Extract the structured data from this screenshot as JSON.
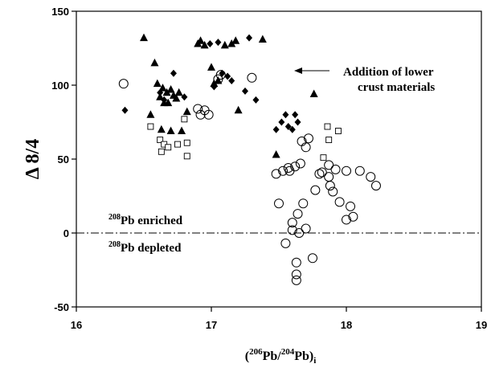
{
  "chart_data": {
    "type": "scatter",
    "xlabel": {
      "pre": "(",
      "sup": "206",
      "mid": "Pb/",
      "sup2": "204",
      "mid2": "Pb)",
      "sub": "i"
    },
    "ylabel": "Δ 8/4",
    "xlim": [
      16,
      19
    ],
    "ylim": [
      -50,
      150
    ],
    "xticks": [
      "16",
      "17",
      "18",
      "19"
    ],
    "yticks": [
      "-50",
      "0",
      "50",
      "100",
      "150"
    ],
    "grid": false,
    "reference_line": {
      "y": 0,
      "style": "dash-dot"
    },
    "annotations": {
      "arrow_line1": "Addition of lower",
      "arrow_line2": "crust materials",
      "enriched_sup": "208",
      "enriched_text": "Pb enriched",
      "depleted_sup": "208",
      "depleted_text": "Pb depleted"
    },
    "series": [
      {
        "marker": "triangle-filled",
        "points": [
          [
            16.5,
            132
          ],
          [
            16.55,
            80
          ],
          [
            16.58,
            115
          ],
          [
            16.6,
            101
          ],
          [
            16.62,
            92
          ],
          [
            16.63,
            70
          ],
          [
            16.64,
            98
          ],
          [
            16.65,
            88
          ],
          [
            16.67,
            95
          ],
          [
            16.68,
            88
          ],
          [
            16.7,
            97
          ],
          [
            16.7,
            69
          ],
          [
            16.72,
            93
          ],
          [
            16.74,
            91
          ],
          [
            16.76,
            95
          ],
          [
            16.78,
            69
          ],
          [
            16.82,
            82
          ],
          [
            16.9,
            128
          ],
          [
            16.92,
            130
          ],
          [
            16.95,
            127
          ],
          [
            17.0,
            112
          ],
          [
            17.02,
            101
          ],
          [
            17.05,
            103
          ],
          [
            17.1,
            127
          ],
          [
            17.15,
            128
          ],
          [
            17.18,
            130
          ],
          [
            17.2,
            83
          ],
          [
            17.38,
            131
          ],
          [
            17.48,
            53
          ],
          [
            17.76,
            94
          ]
        ]
      },
      {
        "marker": "diamond-filled",
        "points": [
          [
            16.36,
            83
          ],
          [
            16.62,
            95
          ],
          [
            16.65,
            90
          ],
          [
            16.72,
            108
          ],
          [
            16.8,
            92
          ],
          [
            16.99,
            128
          ],
          [
            17.02,
            99
          ],
          [
            17.05,
            129
          ],
          [
            17.08,
            108
          ],
          [
            17.12,
            106
          ],
          [
            17.15,
            103
          ],
          [
            17.25,
            96
          ],
          [
            17.28,
            132
          ],
          [
            17.33,
            90
          ],
          [
            17.48,
            70
          ],
          [
            17.52,
            75
          ],
          [
            17.55,
            80
          ],
          [
            17.57,
            72
          ],
          [
            17.6,
            70
          ],
          [
            17.62,
            80
          ],
          [
            17.64,
            75
          ]
        ]
      },
      {
        "marker": "square-open",
        "points": [
          [
            16.55,
            72
          ],
          [
            16.62,
            63
          ],
          [
            16.63,
            55
          ],
          [
            16.65,
            60
          ],
          [
            16.68,
            58
          ],
          [
            16.75,
            60
          ],
          [
            16.8,
            77
          ],
          [
            16.82,
            61
          ],
          [
            16.82,
            52
          ],
          [
            17.83,
            51
          ],
          [
            17.86,
            72
          ],
          [
            17.87,
            63
          ],
          [
            17.94,
            69
          ]
        ]
      },
      {
        "marker": "circle-open",
        "points": [
          [
            16.35,
            101
          ],
          [
            16.9,
            84
          ],
          [
            16.92,
            80
          ],
          [
            16.95,
            83
          ],
          [
            16.98,
            80
          ],
          [
            17.05,
            104
          ],
          [
            17.07,
            107
          ],
          [
            17.3,
            105
          ],
          [
            17.48,
            40
          ],
          [
            17.5,
            20
          ],
          [
            17.53,
            42
          ],
          [
            17.55,
            -7
          ],
          [
            17.57,
            44
          ],
          [
            17.58,
            42
          ],
          [
            17.6,
            7
          ],
          [
            17.6,
            2
          ],
          [
            17.62,
            45
          ],
          [
            17.63,
            -20
          ],
          [
            17.63,
            -28
          ],
          [
            17.63,
            -32
          ],
          [
            17.64,
            13
          ],
          [
            17.65,
            0
          ],
          [
            17.66,
            47
          ],
          [
            17.67,
            62
          ],
          [
            17.68,
            20
          ],
          [
            17.7,
            3
          ],
          [
            17.7,
            58
          ],
          [
            17.72,
            64
          ],
          [
            17.75,
            -17
          ],
          [
            17.77,
            29
          ],
          [
            17.8,
            40
          ],
          [
            17.82,
            41
          ],
          [
            17.87,
            46
          ],
          [
            17.87,
            38
          ],
          [
            17.88,
            32
          ],
          [
            17.9,
            28
          ],
          [
            17.92,
            43
          ],
          [
            17.95,
            21
          ],
          [
            18.0,
            9
          ],
          [
            18.0,
            42
          ],
          [
            18.03,
            18
          ],
          [
            18.05,
            11
          ],
          [
            18.1,
            42
          ],
          [
            18.18,
            38
          ],
          [
            18.22,
            32
          ]
        ]
      }
    ]
  }
}
